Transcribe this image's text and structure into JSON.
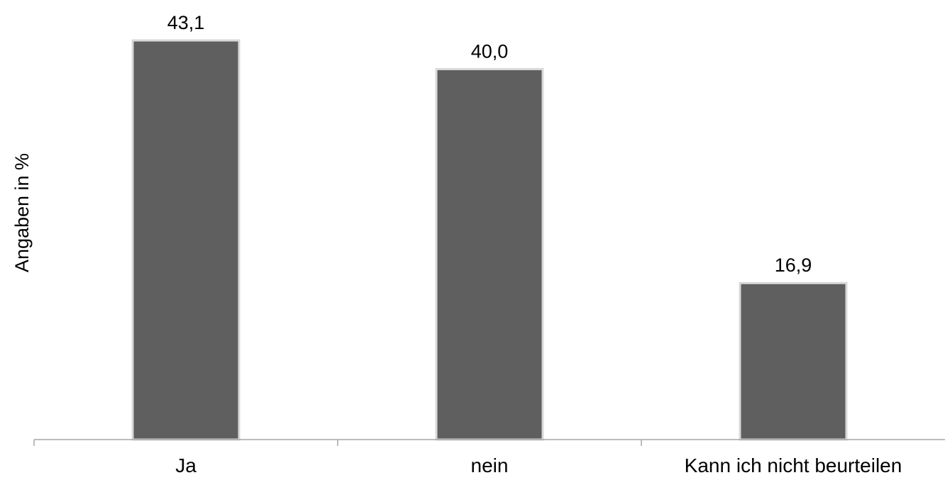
{
  "chart_data": {
    "type": "bar",
    "title": "",
    "xlabel": "",
    "ylabel": "Angaben in %",
    "categories": [
      "Ja",
      "nein",
      "Kann ich nicht beurteilen"
    ],
    "values": [
      43.1,
      40.0,
      16.9
    ],
    "value_labels": [
      "43,1",
      "40,0",
      "16,9"
    ],
    "ylim": [
      0,
      45
    ],
    "grid": false,
    "legend": "none",
    "colors": {
      "bar": "#5f5f5f",
      "bar_edge": "#d9d9d9",
      "axis": "#a6a6a6",
      "text": "#000000"
    }
  }
}
